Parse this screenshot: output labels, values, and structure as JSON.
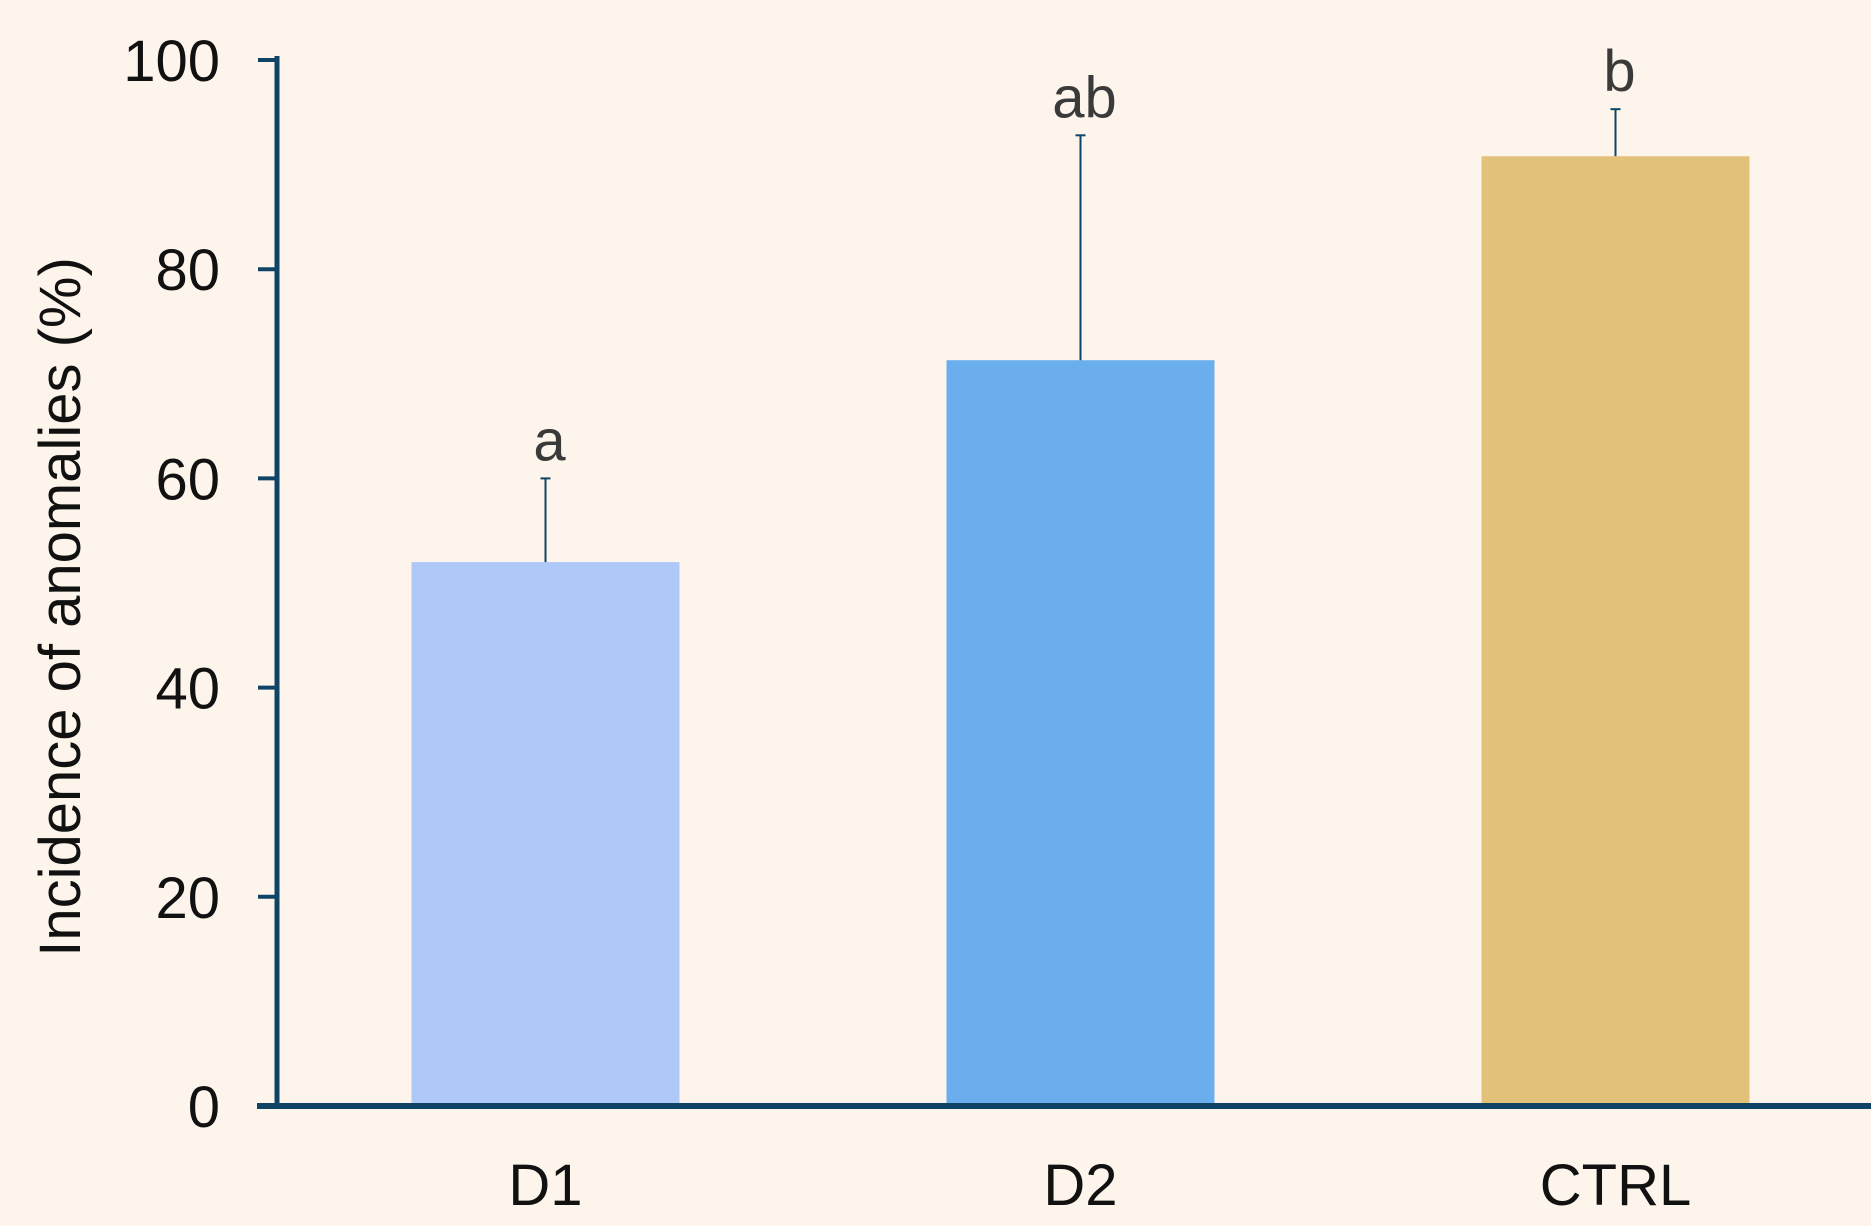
{
  "chart_data": {
    "type": "bar",
    "title": "",
    "xlabel": "",
    "ylabel": "Incidence of anomalies (%)",
    "ylim": [
      0,
      100
    ],
    "yticks": [
      0,
      20,
      40,
      60,
      80,
      100
    ],
    "ytick_labels": [
      "0",
      "20",
      "40",
      "60",
      "80",
      "100"
    ],
    "categories": [
      "D1",
      "D2",
      "CTRL"
    ],
    "values": [
      52,
      71.3,
      90.8
    ],
    "error_upper": [
      8,
      21.5,
      4.5
    ],
    "annotations": [
      "a",
      "ab",
      "b"
    ],
    "colors": [
      "#aec8f8",
      "#6aaeee",
      "#e2c17b"
    ],
    "axis_color": "#0f4466",
    "background": "#fdf5ec",
    "grid": false,
    "legend": "none"
  }
}
